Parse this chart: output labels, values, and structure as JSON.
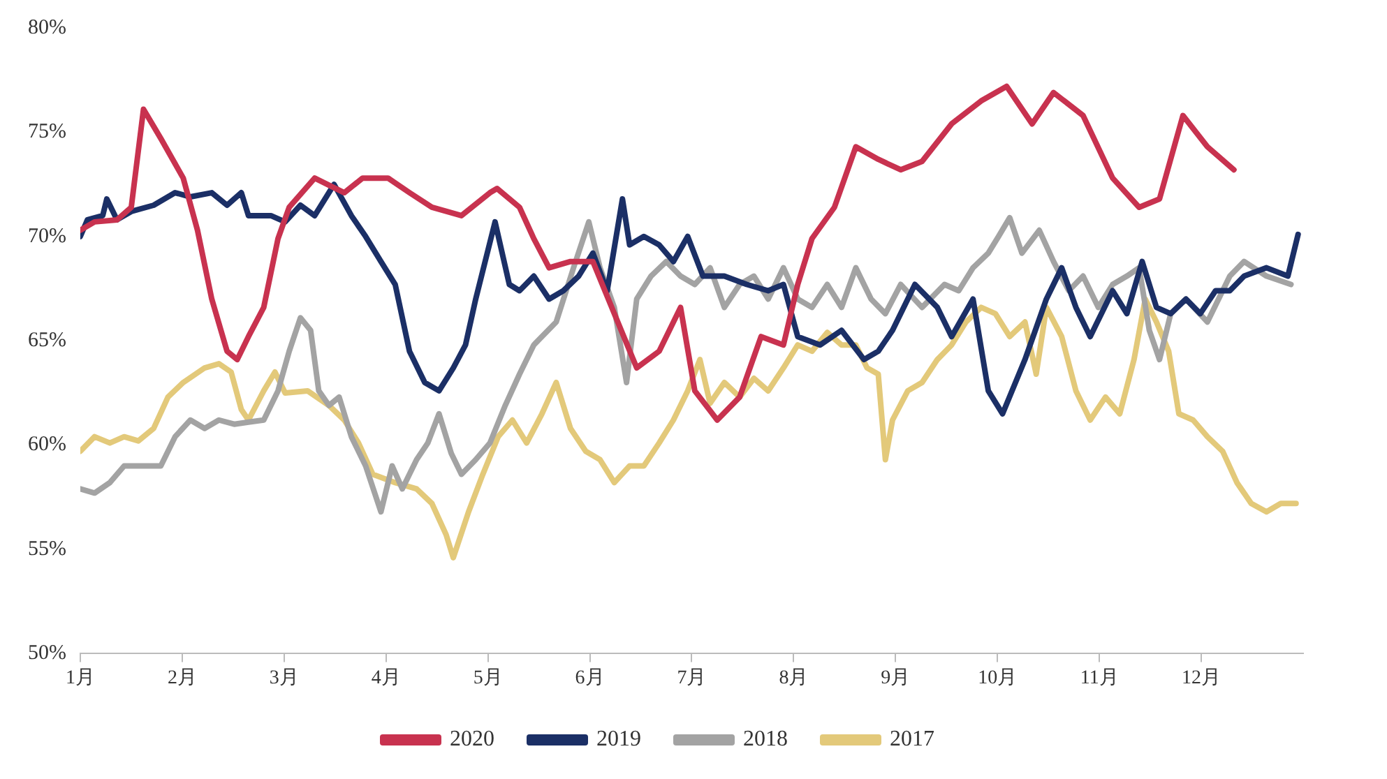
{
  "chart_data": {
    "type": "line",
    "xlim": [
      1,
      13
    ],
    "xticks": [
      {
        "value": 1,
        "label": "1月"
      },
      {
        "value": 2,
        "label": "2月"
      },
      {
        "value": 3,
        "label": "3月"
      },
      {
        "value": 4,
        "label": "4月"
      },
      {
        "value": 5,
        "label": "5月"
      },
      {
        "value": 6,
        "label": "6月"
      },
      {
        "value": 7,
        "label": "7月"
      },
      {
        "value": 8,
        "label": "8月"
      },
      {
        "value": 9,
        "label": "9月"
      },
      {
        "value": 10,
        "label": "10月"
      },
      {
        "value": 11,
        "label": "11月"
      },
      {
        "value": 12,
        "label": "12月"
      }
    ],
    "ylim": [
      50,
      80
    ],
    "yticks": [
      {
        "value": 50,
        "label": "50%"
      },
      {
        "value": 55,
        "label": "55%"
      },
      {
        "value": 60,
        "label": "60%"
      },
      {
        "value": 65,
        "label": "65%"
      },
      {
        "value": 70,
        "label": "70%"
      },
      {
        "value": 75,
        "label": "75%"
      },
      {
        "value": 80,
        "label": "80%"
      }
    ],
    "grid": false,
    "legend": "bottom",
    "marker": "none",
    "line_style": "solid",
    "series": [
      {
        "name": "2020",
        "color": "#c8324f",
        "x": [
          1.0,
          1.14,
          1.36,
          1.5,
          1.62,
          1.79,
          2.01,
          2.15,
          2.29,
          2.44,
          2.54,
          2.65,
          2.8,
          2.94,
          3.05,
          3.3,
          3.59,
          3.77,
          4.02,
          4.23,
          4.45,
          4.74,
          5.02,
          5.09,
          5.31,
          5.45,
          5.6,
          5.81,
          6.03,
          6.24,
          6.46,
          6.68,
          6.89,
          7.03,
          7.25,
          7.47,
          7.68,
          7.9,
          8.04,
          8.18,
          8.4,
          8.61,
          8.83,
          9.05,
          9.26,
          9.55,
          9.84,
          10.09,
          10.34,
          10.55,
          10.84,
          11.13,
          11.39,
          11.59,
          11.82,
          12.06,
          12.32
        ],
        "values": [
          70.3,
          70.7,
          70.8,
          71.4,
          76.1,
          74.7,
          72.8,
          70.3,
          67.0,
          64.5,
          64.1,
          65.2,
          66.6,
          69.9,
          71.4,
          72.8,
          72.1,
          72.8,
          72.8,
          72.1,
          71.4,
          71.0,
          72.1,
          72.3,
          71.4,
          69.9,
          68.5,
          68.8,
          68.8,
          66.3,
          63.7,
          64.5,
          66.6,
          62.6,
          61.2,
          62.3,
          65.2,
          64.8,
          67.7,
          69.9,
          71.4,
          74.3,
          73.7,
          73.2,
          73.6,
          75.4,
          76.5,
          77.2,
          75.4,
          76.9,
          75.8,
          72.8,
          71.4,
          71.8,
          75.8,
          74.3,
          73.2
        ]
      },
      {
        "name": "2019",
        "color": "#1b2f66",
        "x": [
          1.0,
          1.07,
          1.22,
          1.26,
          1.36,
          1.5,
          1.72,
          1.93,
          2.08,
          2.29,
          2.44,
          2.58,
          2.65,
          2.87,
          3.01,
          3.16,
          3.3,
          3.49,
          3.66,
          3.8,
          3.95,
          4.09,
          4.23,
          4.38,
          4.52,
          4.66,
          4.78,
          4.88,
          5.07,
          5.21,
          5.31,
          5.45,
          5.6,
          5.74,
          5.89,
          6.03,
          6.17,
          6.32,
          6.39,
          6.53,
          6.68,
          6.82,
          6.96,
          7.11,
          7.32,
          7.54,
          7.75,
          7.9,
          8.04,
          8.26,
          8.47,
          8.69,
          8.83,
          8.97,
          9.19,
          9.41,
          9.55,
          9.76,
          9.91,
          10.05,
          10.27,
          10.48,
          10.63,
          10.77,
          10.91,
          11.13,
          11.27,
          11.42,
          11.56,
          11.7,
          11.85,
          11.99,
          12.14,
          12.28,
          12.42,
          12.64,
          12.85,
          12.95
        ],
        "values": [
          70.0,
          70.8,
          71.0,
          71.8,
          70.8,
          71.2,
          71.5,
          72.1,
          71.9,
          72.1,
          71.5,
          72.1,
          71.0,
          71.0,
          70.7,
          71.5,
          71.0,
          72.5,
          71.0,
          70.0,
          68.8,
          67.7,
          64.5,
          63.0,
          62.6,
          63.7,
          64.8,
          67.0,
          70.7,
          67.7,
          67.4,
          68.1,
          67.0,
          67.4,
          68.1,
          69.2,
          67.4,
          71.8,
          69.6,
          70.0,
          69.6,
          68.8,
          70.0,
          68.1,
          68.1,
          67.7,
          67.4,
          67.7,
          65.2,
          64.8,
          65.5,
          64.1,
          64.5,
          65.5,
          67.7,
          66.6,
          65.2,
          67.0,
          62.6,
          61.5,
          64.1,
          67.0,
          68.5,
          66.6,
          65.2,
          67.4,
          66.3,
          68.8,
          66.6,
          66.3,
          67.0,
          66.3,
          67.4,
          67.4,
          68.1,
          68.5,
          68.1,
          70.1
        ]
      },
      {
        "name": "2018",
        "color": "#a3a3a3",
        "x": [
          1.0,
          1.14,
          1.29,
          1.43,
          1.57,
          1.79,
          1.93,
          2.08,
          2.22,
          2.36,
          2.51,
          2.65,
          2.8,
          2.94,
          3.05,
          3.16,
          3.26,
          3.34,
          3.44,
          3.54,
          3.66,
          3.8,
          3.95,
          4.06,
          4.16,
          4.3,
          4.41,
          4.52,
          4.64,
          4.74,
          4.88,
          5.02,
          5.17,
          5.31,
          5.45,
          5.67,
          5.84,
          5.99,
          6.1,
          6.24,
          6.36,
          6.46,
          6.6,
          6.75,
          6.89,
          7.03,
          7.18,
          7.32,
          7.47,
          7.61,
          7.75,
          7.9,
          8.04,
          8.18,
          8.33,
          8.47,
          8.61,
          8.76,
          8.9,
          9.05,
          9.26,
          9.48,
          9.62,
          9.76,
          9.91,
          10.01,
          10.12,
          10.24,
          10.41,
          10.55,
          10.7,
          10.84,
          10.99,
          11.13,
          11.27,
          11.39,
          11.49,
          11.59,
          11.7,
          11.85,
          12.06,
          12.28,
          12.42,
          12.64,
          12.88
        ],
        "values": [
          57.9,
          57.7,
          58.2,
          59.0,
          59.0,
          59.0,
          60.4,
          61.2,
          60.8,
          61.2,
          61.0,
          61.1,
          61.2,
          62.6,
          64.5,
          66.1,
          65.5,
          62.6,
          61.9,
          62.3,
          60.4,
          59.0,
          56.8,
          59.0,
          57.9,
          59.3,
          60.1,
          61.5,
          59.6,
          58.6,
          59.3,
          60.1,
          61.9,
          63.4,
          64.8,
          65.9,
          68.5,
          70.7,
          68.5,
          66.6,
          63.0,
          67.0,
          68.1,
          68.8,
          68.1,
          67.7,
          68.5,
          66.6,
          67.7,
          68.1,
          67.0,
          68.5,
          67.0,
          66.6,
          67.7,
          66.6,
          68.5,
          67.0,
          66.3,
          67.7,
          66.6,
          67.7,
          67.4,
          68.5,
          69.2,
          70.0,
          70.9,
          69.2,
          70.3,
          68.8,
          67.4,
          68.1,
          66.6,
          67.7,
          68.1,
          68.5,
          65.5,
          64.1,
          66.3,
          67.0,
          65.9,
          68.1,
          68.8,
          68.1,
          67.7
        ]
      },
      {
        "name": "2017",
        "color": "#e3c97a",
        "x": [
          1.0,
          1.14,
          1.29,
          1.43,
          1.57,
          1.72,
          1.86,
          2.01,
          2.22,
          2.36,
          2.48,
          2.58,
          2.65,
          2.8,
          2.91,
          3.01,
          3.23,
          3.44,
          3.59,
          3.73,
          3.87,
          4.09,
          4.3,
          4.45,
          4.59,
          4.66,
          4.81,
          4.95,
          5.1,
          5.24,
          5.38,
          5.53,
          5.67,
          5.81,
          5.96,
          6.1,
          6.24,
          6.39,
          6.53,
          6.68,
          6.82,
          6.96,
          7.08,
          7.18,
          7.32,
          7.47,
          7.61,
          7.75,
          7.9,
          8.04,
          8.18,
          8.33,
          8.47,
          8.61,
          8.72,
          8.83,
          8.9,
          8.97,
          9.12,
          9.26,
          9.41,
          9.55,
          9.69,
          9.84,
          9.98,
          10.12,
          10.27,
          10.38,
          10.48,
          10.63,
          10.77,
          10.91,
          11.06,
          11.2,
          11.34,
          11.45,
          11.56,
          11.68,
          11.78,
          11.92,
          12.06,
          12.21,
          12.35,
          12.49,
          12.64,
          12.78,
          12.93
        ],
        "values": [
          59.7,
          60.4,
          60.1,
          60.4,
          60.2,
          60.8,
          62.3,
          63.0,
          63.7,
          63.9,
          63.5,
          61.7,
          61.2,
          62.6,
          63.5,
          62.5,
          62.6,
          61.9,
          61.2,
          60.1,
          58.6,
          58.2,
          57.9,
          57.2,
          55.7,
          54.6,
          56.8,
          58.6,
          60.4,
          61.2,
          60.1,
          61.5,
          63.0,
          60.8,
          59.7,
          59.3,
          58.2,
          59.0,
          59.0,
          60.1,
          61.2,
          62.6,
          64.1,
          62.0,
          63.0,
          62.3,
          63.2,
          62.6,
          63.7,
          64.8,
          64.5,
          65.4,
          64.8,
          64.8,
          63.7,
          63.4,
          59.3,
          61.2,
          62.6,
          63.0,
          64.1,
          64.8,
          65.9,
          66.6,
          66.3,
          65.2,
          65.9,
          63.4,
          66.6,
          65.2,
          62.6,
          61.2,
          62.3,
          61.5,
          64.1,
          67.0,
          65.9,
          64.5,
          61.5,
          61.2,
          60.4,
          59.7,
          58.2,
          57.2,
          56.8,
          57.2,
          57.2
        ]
      }
    ]
  }
}
